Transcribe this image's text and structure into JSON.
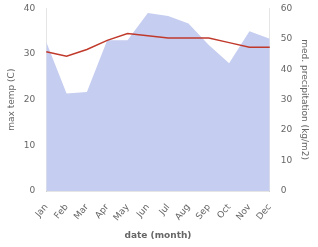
{
  "chart_data": {
    "type": "line",
    "xlabel": "date (month)",
    "ylabel": "max temp (C)",
    "y2label": "med. precipitation (kg/m2)",
    "categories": [
      "Jan",
      "Feb",
      "Mar",
      "Apr",
      "May",
      "Jun",
      "Jul",
      "Aug",
      "Sep",
      "Oct",
      "Nov",
      "Dec"
    ],
    "series": [
      {
        "type": "area",
        "color": "#c5cdf0",
        "axis": "y2",
        "values": [
          49.0,
          32.0,
          32.5,
          49.5,
          49.5,
          58.5,
          57.5,
          55.0,
          48.0,
          42.0,
          52.5,
          50.0
        ]
      },
      {
        "type": "line",
        "color": "#c0392b",
        "values": [
          30.5,
          29.5,
          31.0,
          33.0,
          34.5,
          34.0,
          33.5,
          33.5,
          33.5,
          32.5,
          31.5,
          31.5
        ]
      }
    ],
    "ylim": [
      0,
      40
    ],
    "yticks": [
      0,
      10,
      20,
      30,
      40
    ],
    "y2lim": [
      0,
      60
    ],
    "y2ticks": [
      0,
      10,
      20,
      30,
      40,
      50,
      60
    ],
    "grid": false
  }
}
